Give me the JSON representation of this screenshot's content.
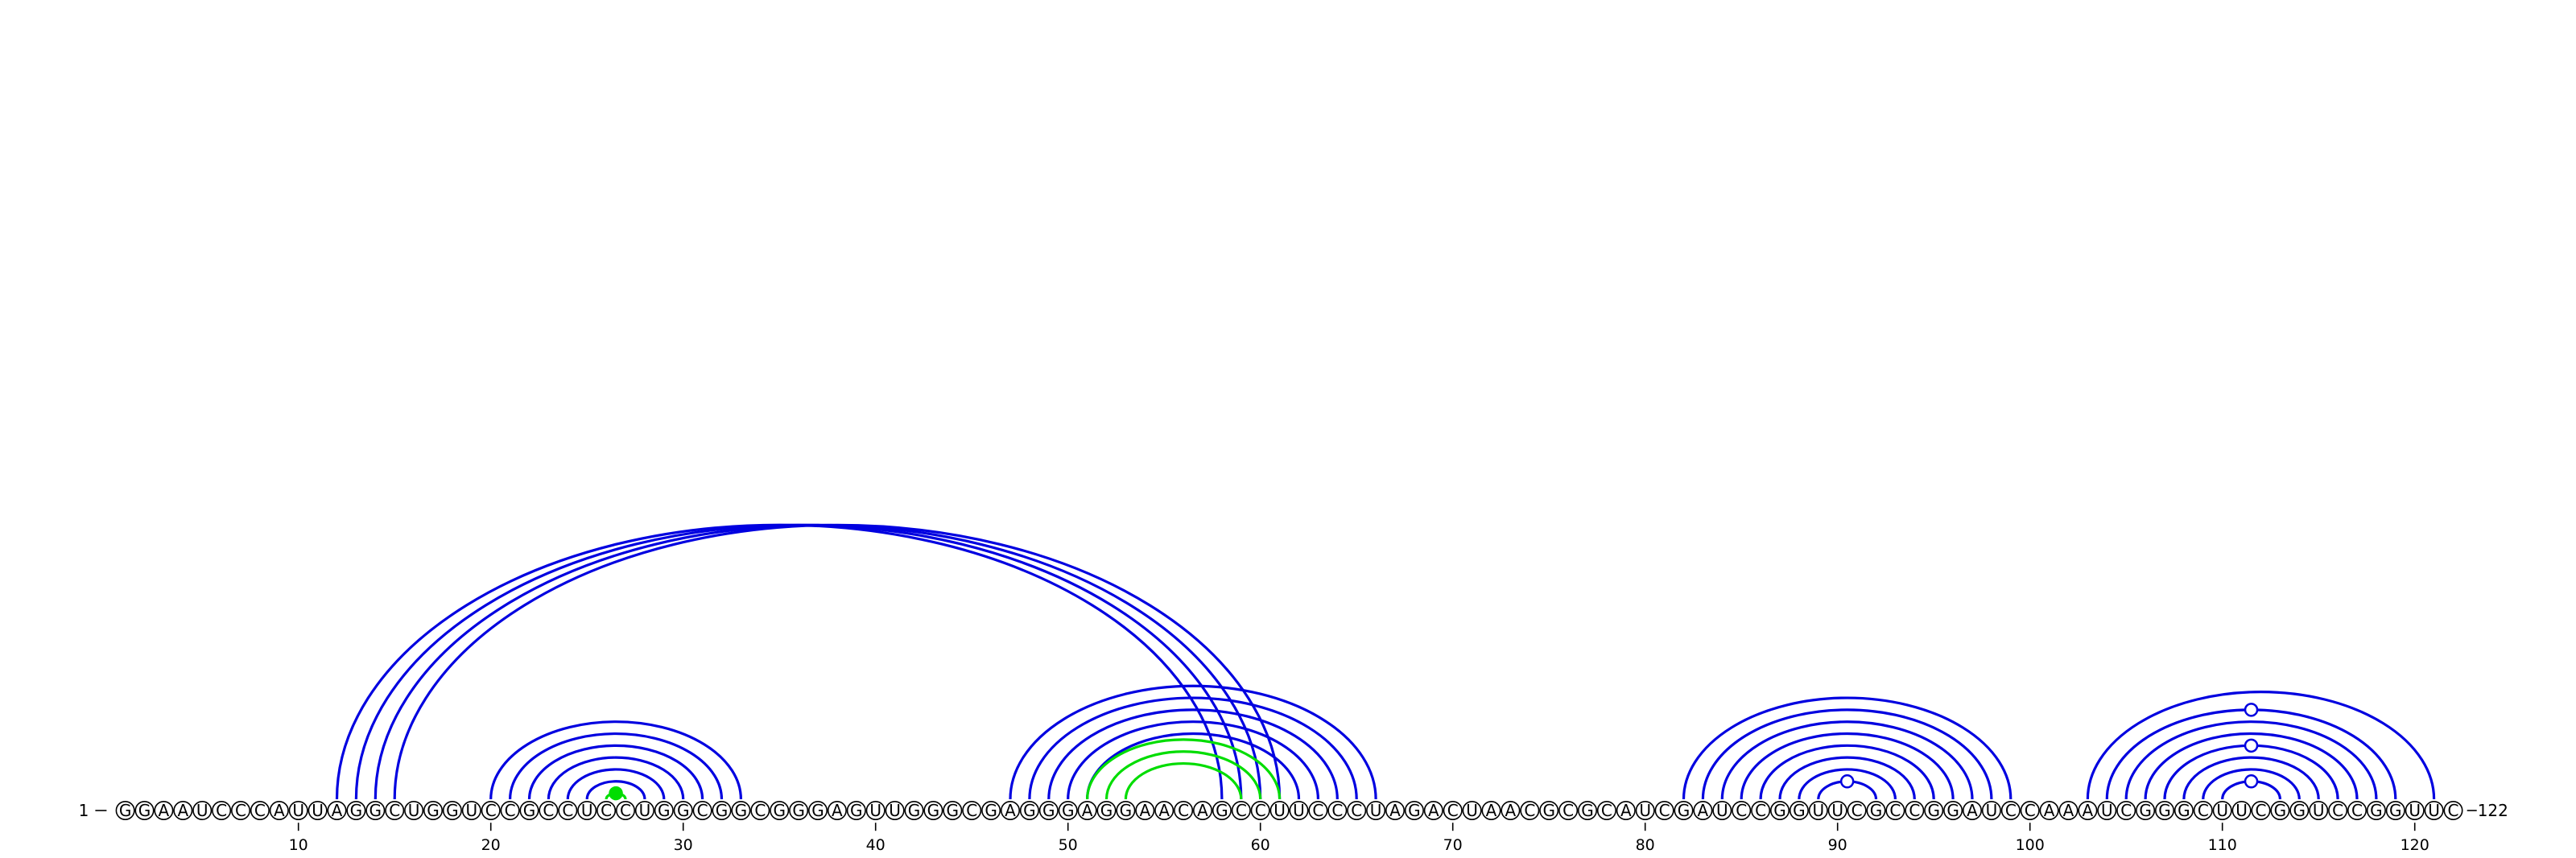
{
  "diagram": {
    "sequence": "GGAAUCCCAUUAGGCUGGUCCGCCUCCUGGCGGCGGGAGUUGGGCGAGGGAGGAACAGCCUUCCCUAGACUAACGCGCAUCGAUCCGGUUCGCCGGAUCCAAAUCGGGCUUCGGUCCGGUUC",
    "start_label": "1",
    "end_label": "122",
    "ticks": [
      10,
      20,
      30,
      40,
      50,
      60,
      70,
      80,
      90,
      100,
      110,
      120
    ],
    "colors": {
      "primary_arcs": "#0000e0",
      "secondary_arcs": "#00dd00",
      "nucleotide_outline": "#000000",
      "background": "#ffffff"
    },
    "pairs": [
      {
        "color": "blue",
        "pairs": [
          [
            12,
            58
          ],
          [
            13,
            59
          ],
          [
            14,
            60
          ],
          [
            15,
            61
          ],
          [
            20,
            33
          ],
          [
            21,
            32
          ],
          [
            22,
            31
          ],
          [
            23,
            30
          ],
          [
            24,
            29
          ],
          [
            25,
            28
          ],
          [
            47,
            66
          ],
          [
            48,
            65
          ],
          [
            49,
            64
          ],
          [
            50,
            63
          ],
          [
            51,
            62
          ],
          [
            82,
            99
          ],
          [
            83,
            98
          ],
          [
            84,
            97
          ],
          [
            85,
            96
          ],
          [
            86,
            95
          ],
          [
            87,
            94
          ],
          [
            88,
            93
          ],
          [
            89,
            92
          ],
          [
            103,
            121
          ],
          [
            104,
            119
          ],
          [
            105,
            118
          ],
          [
            106,
            117
          ],
          [
            107,
            116
          ],
          [
            108,
            115
          ],
          [
            109,
            114
          ],
          [
            110,
            113
          ]
        ]
      },
      {
        "color": "green",
        "pairs": [
          [
            26,
            27
          ],
          [
            51,
            61
          ],
          [
            52,
            60
          ],
          [
            53,
            59
          ]
        ]
      }
    ],
    "hairpin_markers": [
      {
        "color": "green",
        "filled": true,
        "position": 26.5
      },
      {
        "color": "blue",
        "filled": false,
        "position": 90.5
      },
      {
        "color": "blue",
        "filled": false,
        "position": 111.5
      },
      {
        "color": "blue",
        "filled": false,
        "position": 111.5
      },
      {
        "color": "blue",
        "filled": false,
        "position": 111.5
      }
    ]
  }
}
